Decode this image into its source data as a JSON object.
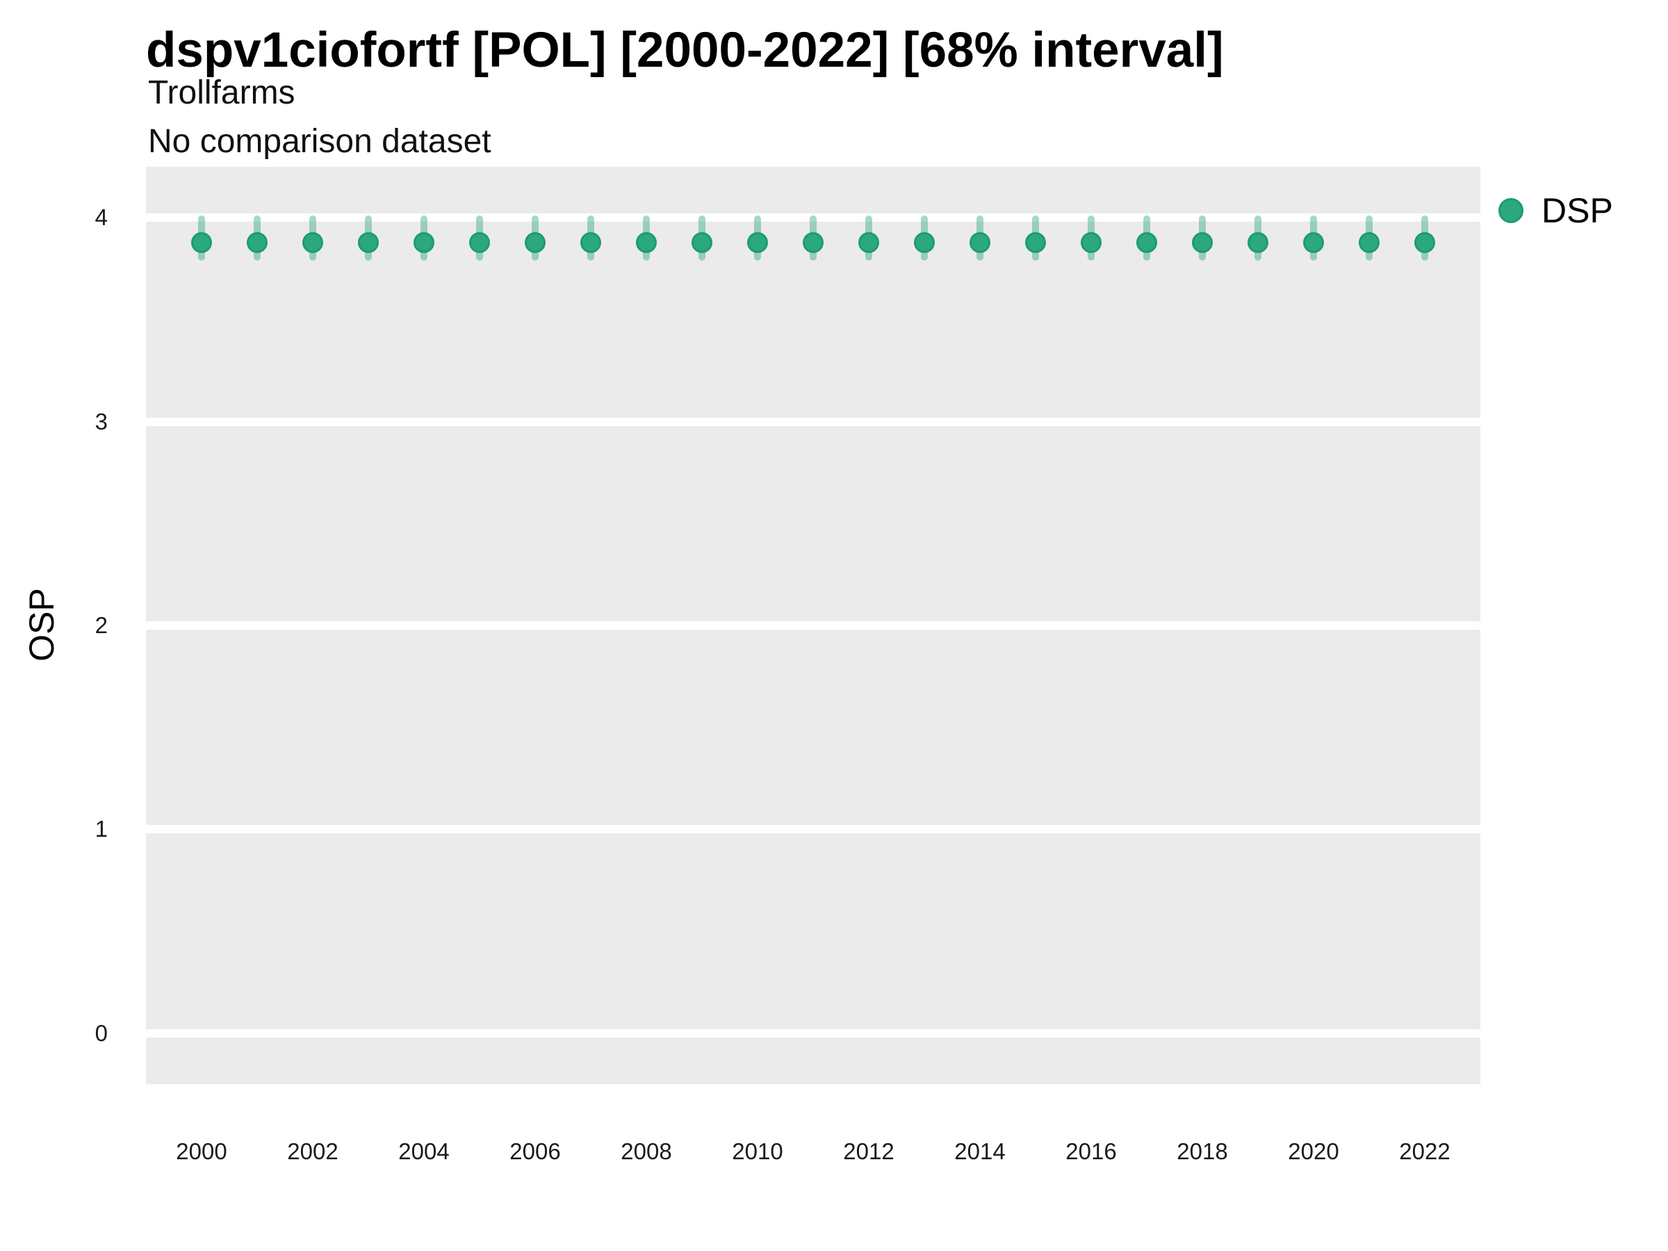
{
  "header": {
    "title": "dspv1ciofortf [POL] [2000-2022] [68% interval]",
    "subtitle": "Trollfarms",
    "comparison_note": "No comparison dataset"
  },
  "legend": {
    "position": "right-top",
    "items": [
      {
        "label": "DSP"
      }
    ]
  },
  "colors": {
    "panel_background": "#ebebeb",
    "gridline": "#ffffff",
    "point_fill": "#2ba87d",
    "point_stroke": "#1d9c70",
    "interval_bar": "rgba(39,164,120,0.42)",
    "axis_text": "#1a1a1a",
    "title_text": "#000000"
  },
  "chart_data": {
    "type": "scatter",
    "title": "dspv1ciofortf [POL] [2000-2022] [68% interval]",
    "subtitle": "Trollfarms",
    "annotation": "No comparison dataset",
    "xlabel": "",
    "ylabel": "OSP",
    "interval_level_percent": 68,
    "grid": "horizontal-major-only",
    "legend_position": "right-top",
    "xlim": [
      1999,
      2023
    ],
    "ylim": [
      -0.25,
      4.25
    ],
    "xticks": [
      2000,
      2002,
      2004,
      2006,
      2008,
      2010,
      2012,
      2014,
      2016,
      2018,
      2020,
      2022
    ],
    "yticks": [
      0,
      1,
      2,
      3,
      4
    ],
    "x": [
      2000,
      2001,
      2002,
      2003,
      2004,
      2005,
      2006,
      2007,
      2008,
      2009,
      2010,
      2011,
      2012,
      2013,
      2014,
      2015,
      2016,
      2017,
      2018,
      2019,
      2020,
      2021,
      2022
    ],
    "series": [
      {
        "name": "DSP",
        "values": [
          3.88,
          3.88,
          3.88,
          3.88,
          3.88,
          3.88,
          3.88,
          3.88,
          3.88,
          3.88,
          3.88,
          3.88,
          3.88,
          3.88,
          3.88,
          3.88,
          3.88,
          3.88,
          3.88,
          3.88,
          3.88,
          3.88,
          3.88
        ],
        "interval_low": [
          3.79,
          3.79,
          3.79,
          3.79,
          3.79,
          3.79,
          3.79,
          3.79,
          3.79,
          3.79,
          3.79,
          3.79,
          3.79,
          3.79,
          3.79,
          3.79,
          3.79,
          3.79,
          3.79,
          3.79,
          3.79,
          3.79,
          3.79
        ],
        "interval_high": [
          4.01,
          4.01,
          4.01,
          4.01,
          4.01,
          4.01,
          4.01,
          4.01,
          4.01,
          4.01,
          4.01,
          4.01,
          4.01,
          4.01,
          4.01,
          4.01,
          4.01,
          4.01,
          4.01,
          4.01,
          4.01,
          4.01,
          4.01
        ]
      }
    ]
  }
}
